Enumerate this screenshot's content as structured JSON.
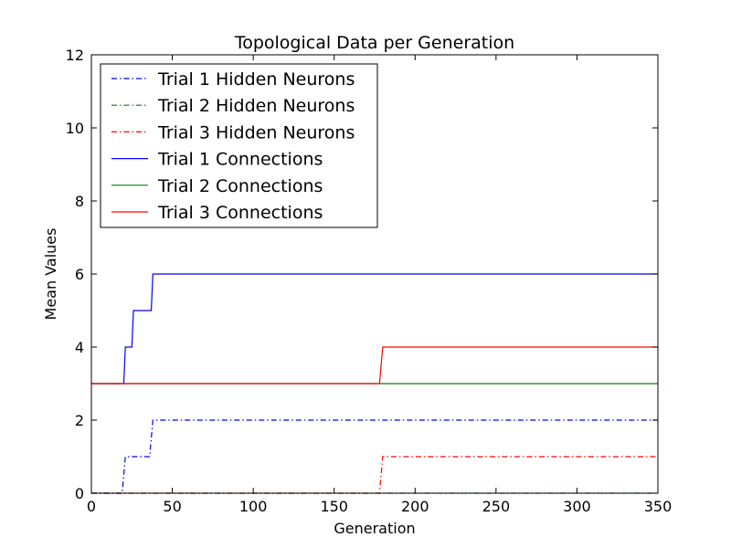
{
  "chart_data": {
    "type": "line",
    "title": "Topological Data per Generation",
    "xlabel": "Generation",
    "ylabel": "Mean Values",
    "xlim": [
      0,
      350
    ],
    "ylim": [
      0,
      12
    ],
    "xticks": [
      0,
      50,
      100,
      150,
      200,
      250,
      300,
      350
    ],
    "yticks": [
      0,
      2,
      4,
      6,
      8,
      10,
      12
    ],
    "grid": false,
    "legend_position": "top-left",
    "series": [
      {
        "name": "Trial 1 Hidden Neurons",
        "color": "#0000ff",
        "style": "dashdot",
        "points": [
          [
            0,
            0
          ],
          [
            19,
            0
          ],
          [
            21,
            1
          ],
          [
            36,
            1
          ],
          [
            38,
            2
          ],
          [
            350,
            2
          ]
        ]
      },
      {
        "name": "Trial 2 Hidden Neurons",
        "color": "#008000",
        "style": "dashdot",
        "points": [
          [
            0,
            0
          ],
          [
            350,
            0
          ]
        ]
      },
      {
        "name": "Trial 3 Hidden Neurons",
        "color": "#ff0000",
        "style": "dashdot",
        "points": [
          [
            0,
            0
          ],
          [
            178,
            0
          ],
          [
            180,
            1
          ],
          [
            350,
            1
          ]
        ]
      },
      {
        "name": "Trial 1 Connections",
        "color": "#0000ff",
        "style": "solid",
        "points": [
          [
            0,
            3
          ],
          [
            20,
            3
          ],
          [
            21,
            4
          ],
          [
            25,
            4
          ],
          [
            26,
            5
          ],
          [
            37,
            5
          ],
          [
            38,
            6
          ],
          [
            350,
            6
          ]
        ]
      },
      {
        "name": "Trial 2 Connections",
        "color": "#008000",
        "style": "solid",
        "points": [
          [
            0,
            3
          ],
          [
            350,
            3
          ]
        ]
      },
      {
        "name": "Trial 3 Connections",
        "color": "#ff0000",
        "style": "solid",
        "points": [
          [
            0,
            3
          ],
          [
            178,
            3
          ],
          [
            180,
            4
          ],
          [
            350,
            4
          ]
        ]
      }
    ]
  }
}
